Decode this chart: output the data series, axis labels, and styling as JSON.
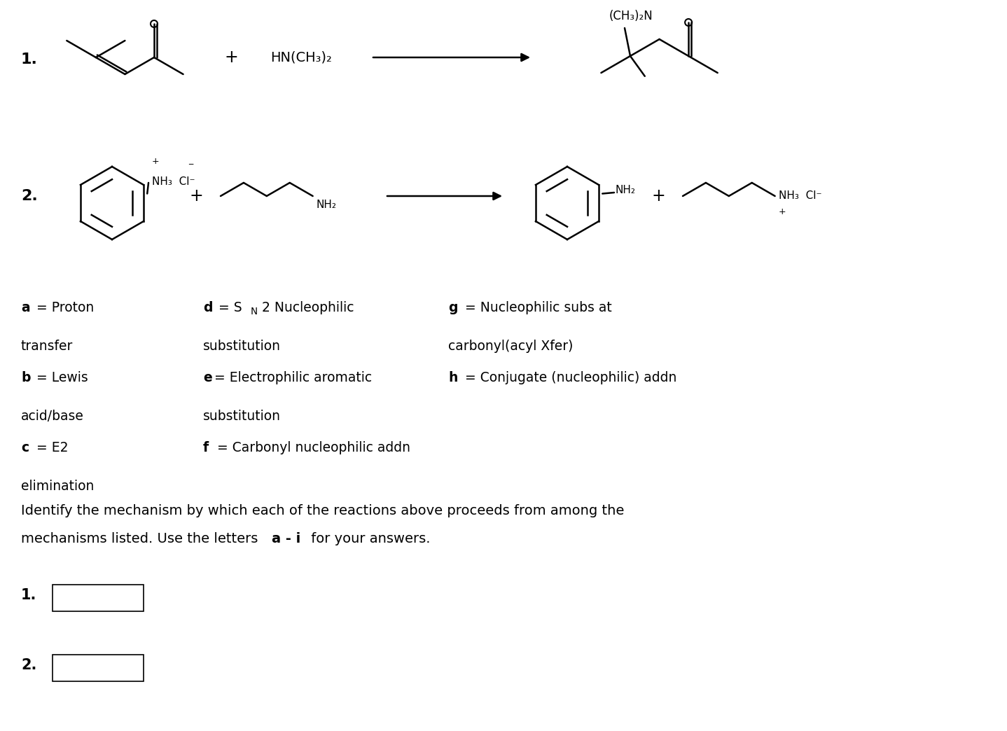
{
  "background_color": "#ffffff",
  "fig_width": 14.38,
  "fig_height": 10.44,
  "dpi": 100,
  "reagent1": "HN(CH₃)₂",
  "product_N_label": "(CH₃)₂N",
  "benzene_label_reactant": "⁺NH₃  Cl⁻",
  "nh2_label": "NH₂",
  "product_nh2_label": "NH₂",
  "product_nh3cl_label": "⁺NH₃  Cl⁻",
  "q_line1": "Identify the mechanism by which each of the reactions above proceeds from among the",
  "q_line2": "mechanisms listed. Use the letters ",
  "q_bold": "a - i",
  "q_end": " for your answers.",
  "font_size_main": 14,
  "font_size_mech": 13.5,
  "lw": 1.8
}
